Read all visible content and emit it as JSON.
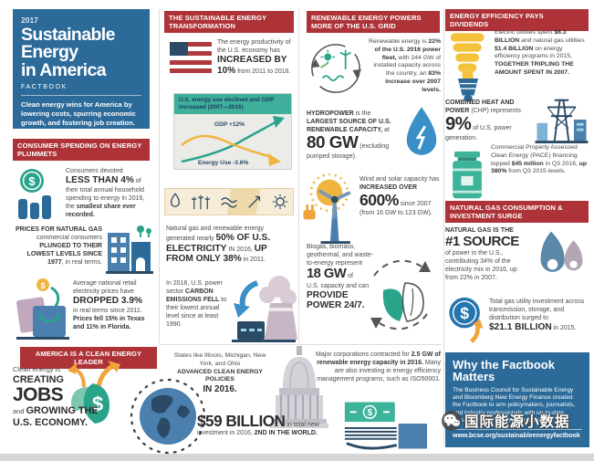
{
  "colors": {
    "primary_blue": "#2b6a99",
    "header_red": "#ad3338",
    "teal": "#3fae9b",
    "leaf_green": "#2aa38b",
    "navy": "#2b4a66",
    "steel_blue": "#4a7fae",
    "orange": "#f0a43c",
    "gold": "#f0b440"
  },
  "masthead": {
    "year": "2017",
    "title": "Sustainable\nEnergy\nin America",
    "subtitle": "FACTBOOK",
    "tagline": "Clean energy wins for America by lowering costs, spurring economic growth, and fostering job creation."
  },
  "sections": {
    "consumer": {
      "header": "CONSUMER SPENDING ON ENERGY PLUMMETS",
      "household": [
        {
          "t": "Consumers devoted\n"
        },
        {
          "t": "LESS THAN 4%",
          "c": "big"
        },
        {
          "t": " of their total annual household spending to energy in 2016, the "
        },
        {
          "t": "smallest share ever recorded.",
          "c": "b"
        }
      ],
      "natgas_prices": [
        {
          "t": "PRICES FOR NATURAL GAS",
          "c": "b"
        },
        {
          "t": " commercial consumers "
        },
        {
          "t": "PLUNGED TO THEIR LOWEST LEVELS SINCE 1977",
          "c": "b"
        },
        {
          "t": ", in real terms."
        }
      ],
      "electricity_prices": [
        {
          "t": "Average national retail electricity prices have\n"
        },
        {
          "t": "DROPPED 3.9%",
          "c": "big"
        },
        {
          "t": "\nin real terms since 2011. "
        },
        {
          "t": "Prices fell 15% in Texas and 11% in Florida.",
          "c": "b"
        }
      ]
    },
    "leader": {
      "header": "AMERICA IS A CLEAN ENERGY LEADER",
      "jobs": [
        {
          "t": "Clean energy is\n"
        },
        {
          "t": "CREATING",
          "c": "big"
        },
        {
          "t": "\n"
        },
        {
          "t": "JOBS",
          "c": "huge"
        },
        {
          "t": "\nand "
        },
        {
          "t": "GROWING THE U.S. ECONOMY.",
          "c": "big"
        }
      ],
      "states": [
        {
          "t": "States like Illinois, Michigan, New York, and Ohio\n"
        },
        {
          "t": "ADVANCED CLEAN ENERGY POLICIES",
          "c": "b"
        },
        {
          "t": "\n"
        },
        {
          "t": "IN 2016.",
          "c": "big"
        }
      ],
      "investment": [
        {
          "t": "$59 BILLION",
          "c": "huge"
        },
        {
          "t": " in total new\ninvestment in 2016, "
        },
        {
          "t": "2ND IN THE WORLD.",
          "c": "b"
        }
      ]
    },
    "transformation": {
      "header": "THE SUSTAINABLE ENERGY TRANSFORMATION",
      "productivity": [
        {
          "t": "The energy productivity of the U.S. economy has "
        },
        {
          "t": "INCREASED BY 10%",
          "c": "big"
        },
        {
          "t": " from 2011 to 2016."
        }
      ],
      "electricity_mix": [
        {
          "t": "Natural gas and renewable energy generated nearly "
        },
        {
          "t": "50% OF U.S. ELECTRICITY",
          "c": "big"
        },
        {
          "t": " IN 2016, "
        },
        {
          "t": "UP FROM ONLY 38%",
          "c": "big"
        },
        {
          "t": " in 2011."
        }
      ],
      "carbon": [
        {
          "t": "In 2016, U.S. power sector "
        },
        {
          "t": "CARBON EMISSIONS FELL",
          "c": "b"
        },
        {
          "t": " to their lowest annual level since at least 1990."
        }
      ]
    },
    "renewables": {
      "header": "RENEWABLE ENERGY POWERS MORE OF THE U.S. GRID",
      "fleet": [
        {
          "t": "Renewable energy is "
        },
        {
          "t": "22% of the U.S. 2016 power fleet,",
          "c": "b"
        },
        {
          "t": " with 244 GW of installed capacity across the country, an "
        },
        {
          "t": "83% increase over 2007 levels.",
          "c": "b"
        }
      ],
      "hydro": [
        {
          "t": "HYDROPOWER",
          "c": "b"
        },
        {
          "t": " is the "
        },
        {
          "t": "LARGEST SOURCE OF U.S. RENEWABLE CAPACITY,",
          "c": "b"
        },
        {
          "t": " at\n"
        },
        {
          "t": "80 GW",
          "c": "huge"
        },
        {
          "t": " (excluding pumped storage)."
        }
      ],
      "wind_solar": [
        {
          "t": "Wind and solar capacity has "
        },
        {
          "t": "INCREASED OVER",
          "c": "b"
        },
        {
          "t": "\n"
        },
        {
          "t": "600%",
          "c": "huge"
        },
        {
          "t": " since 2007\n"
        },
        {
          "t": "(from 16 GW to 123 GW)."
        }
      ],
      "biogas": [
        {
          "t": "Biogas, biomass, geothermal, and waste-to-energy represent\n"
        },
        {
          "t": "18 GW",
          "c": "huge"
        },
        {
          "t": " of\nU.S. capacity and can\n"
        },
        {
          "t": "PROVIDE POWER 24/7.",
          "c": "big"
        }
      ],
      "corporates": [
        {
          "t": "Major corporations contracted for "
        },
        {
          "t": "2.5 GW of renewable energy capacity in 2016.",
          "c": "b"
        },
        {
          "t": " Many are also investing in energy efficiency management programs, such as ISO50001."
        }
      ]
    },
    "efficiency": {
      "header": "ENERGY EFFICIENCY PAYS DIVIDENDS",
      "utilities": [
        {
          "t": "Electric utilities spent "
        },
        {
          "t": "$6.3 BILLION",
          "c": "b"
        },
        {
          "t": " and natural gas utilities "
        },
        {
          "t": "$1.4 BILLION",
          "c": "b"
        },
        {
          "t": " on energy efficiency programs in 2015, "
        },
        {
          "t": "TOGETHER TRIPLING THE AMOUNT SPENT IN 2007.",
          "c": "b"
        }
      ],
      "chp": [
        {
          "t": "COMBINED HEAT AND POWER",
          "c": "b"
        },
        {
          "t": " (CHP) represents\n"
        },
        {
          "t": "9%",
          "c": "huge"
        },
        {
          "t": " of U.S. power generation."
        }
      ],
      "pace": [
        {
          "t": "Commercial Property Assessed Clean Energy (PACE) financing topped "
        },
        {
          "t": "$45 million",
          "c": "b"
        },
        {
          "t": " in Q3 2016, "
        },
        {
          "t": "up 380%",
          "c": "b"
        },
        {
          "t": " from Q3 2015 levels."
        }
      ]
    },
    "natural_gas": {
      "header": "NATURAL GAS CONSUMPTION & INVESTMENT SURGE",
      "source": [
        {
          "t": "NATURAL GAS IS THE",
          "c": "b"
        },
        {
          "t": "\n"
        },
        {
          "t": "#1 SOURCE",
          "c": "huge"
        },
        {
          "t": "\nof power in the U.S., contributing 34% of the electricity mix in 2016, up from 22% in 2007."
        }
      ],
      "investment": [
        {
          "t": "Total gas utility investment across transmission, storage, and distribution surged to\n"
        },
        {
          "t": "$21.1 BILLION",
          "c": "big"
        },
        {
          "t": " in 2015."
        }
      ]
    },
    "factbook": {
      "title": "Why the Factbook Matters",
      "body": "The Business Council for Sustainable Energy and Bloomberg New Energy Finance created the Factbook to arm policymakers, journalists, and industry professionals with up-to-date, accurate market information about the U.S.",
      "url": "www.bcse.org/sustainableenergyfactbook"
    },
    "watermark": "国际能源小数据"
  },
  "chart_data": {
    "type": "line",
    "title": "U.S. energy use declined and GDP increased (2007—2016)",
    "x_range": [
      "2007",
      "2016"
    ],
    "series": [
      {
        "name": "GDP",
        "label": "GDP +12%",
        "trend": "up",
        "change_pct": 12
      },
      {
        "name": "Energy Use",
        "label": "Energy Use -3.6%",
        "trend": "down",
        "change_pct": -3.6
      }
    ],
    "grid": false,
    "legend_position": "inline"
  },
  "icons": {
    "dollar-coin-bars-icon": "teal $ coin with blue bar chart",
    "city-buildings-icon": "blue buildings with windows",
    "shopping-bags-icon": "shopping bags, gold coin, teal arrow",
    "leaf-dollar-icon": "green leaf with $, orange growth arrows",
    "globe-icon": "americas globe in dashed ring",
    "capitol-icon": "US capitol dome",
    "us-flag-icon": "US flag",
    "energy-strip-icons": "flame, wind turbines, hydro wave, transfer arrow, sun",
    "power-plant-icon": "cooling tower, smoke, blue down arrow",
    "renewables-cycle-icon": "renewable glyphs inside circular arrows",
    "water-drop-icon": "blue drop with white bolt",
    "sun-turbine-icon": "sun, wind turbine, orange plug",
    "leaf-cycle-icon": "two leaves in dashed circular arrows",
    "money-hand-icon": "banknote over hand lines",
    "cfl-bulb-icon": "yellow spiral bulb, blue base",
    "pylon-icon": "transmission pylon with buildings",
    "savings-jar-icon": "teal savings jar",
    "gas-flames-icon": "two gas flames",
    "dollar-up-icon": "blue $ coin with orange up arrow",
    "wechat-icon": "chat bubbles"
  }
}
